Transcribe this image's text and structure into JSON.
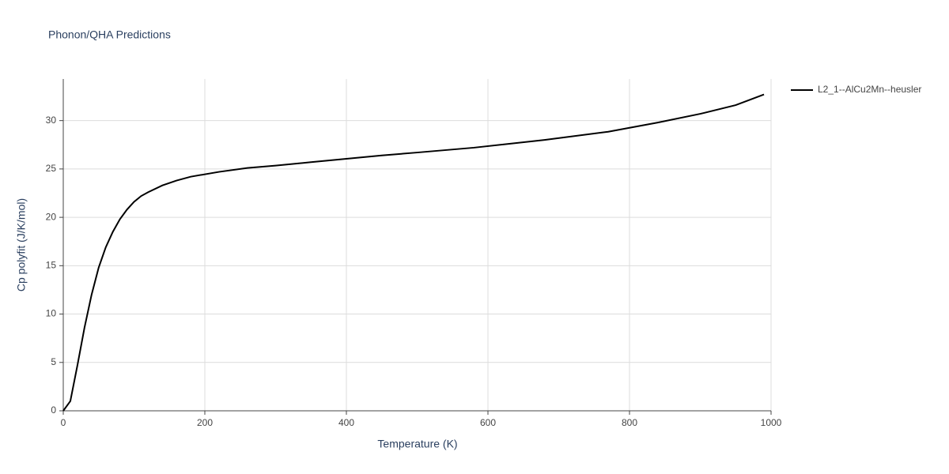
{
  "chart_data": {
    "type": "line",
    "title": "Phonon/QHA Predictions",
    "x_label": "Temperature (K)",
    "y_label": "Cp polyfit (J/K/mol)",
    "x": [
      0,
      10,
      20,
      30,
      40,
      50,
      60,
      70,
      80,
      90,
      100,
      110,
      120,
      140,
      160,
      180,
      220,
      260,
      300,
      350,
      400,
      450,
      500,
      580,
      680,
      770,
      840,
      900,
      950,
      990
    ],
    "series": [
      {
        "name": "L2_1--AlCu2Mn--heusler",
        "color": "#000000",
        "values": [
          0,
          1.0,
          4.7,
          8.6,
          12.0,
          14.8,
          16.9,
          18.5,
          19.8,
          20.8,
          21.6,
          22.2,
          22.6,
          23.3,
          23.8,
          24.2,
          24.7,
          25.1,
          25.35,
          25.7,
          26.05,
          26.4,
          26.7,
          27.2,
          28.0,
          28.85,
          29.8,
          30.7,
          31.6,
          32.7
        ]
      }
    ],
    "xlim": [
      0,
      1000
    ],
    "xticks": [
      0,
      200,
      400,
      600,
      800,
      1000
    ],
    "ylim": [
      0,
      34.3
    ],
    "yticks": [
      0,
      5,
      10,
      15,
      20,
      25,
      30
    ],
    "grid": true,
    "legend": "right"
  }
}
